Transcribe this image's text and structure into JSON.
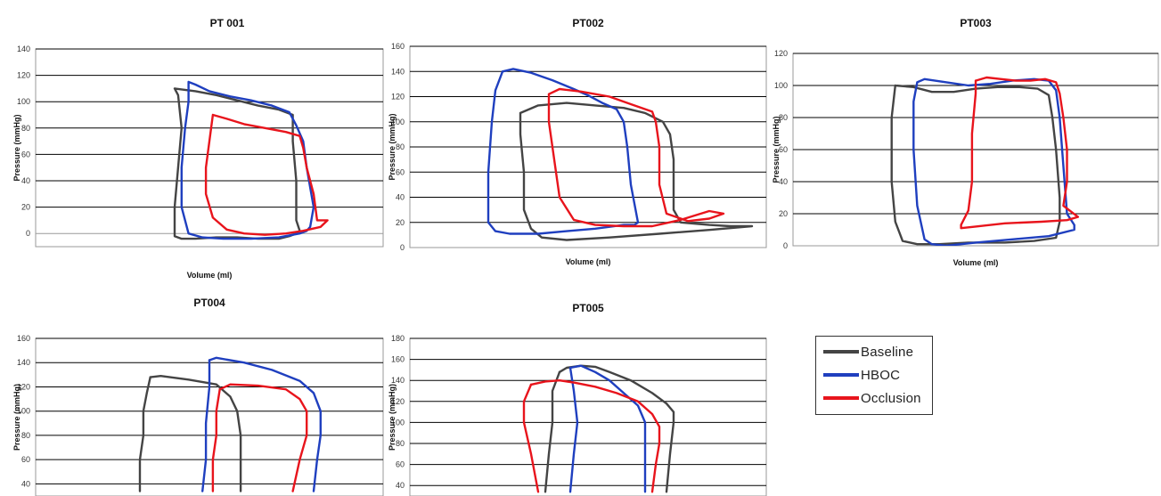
{
  "legend": {
    "items": [
      {
        "label": "Baseline",
        "color": "#444444"
      },
      {
        "label": "HBOC",
        "color": "#1f3fbf"
      },
      {
        "label": "Occlusion",
        "color": "#e8141c"
      }
    ]
  },
  "chart_data": [
    {
      "type": "line",
      "title": "PT 001",
      "xlabel": "Volume (ml)",
      "ylabel": "Pressure (mmHg)",
      "ylim": [
        -10,
        140
      ],
      "yticks": [
        0,
        20,
        40,
        60,
        80,
        100,
        120,
        140
      ],
      "xlim": [
        0,
        100
      ],
      "grid": "horizontal-major",
      "series": [
        {
          "name": "Baseline",
          "x": [
            40,
            46,
            52,
            58,
            64,
            70,
            74,
            74,
            75,
            75,
            76,
            75,
            73,
            70,
            64,
            58,
            52,
            46,
            42,
            40,
            40,
            41,
            42,
            41,
            40
          ],
          "y": [
            110,
            108,
            105,
            101,
            97,
            94,
            90,
            70,
            40,
            10,
            2,
            0,
            -2,
            -4,
            -4,
            -3,
            -3,
            -4,
            -4,
            -2,
            20,
            50,
            80,
            105,
            110
          ]
        },
        {
          "name": "HBOC",
          "x": [
            44,
            46,
            50,
            56,
            62,
            68,
            73,
            75,
            77,
            78,
            80,
            79,
            78,
            76,
            70,
            62,
            54,
            48,
            44,
            42,
            42,
            43,
            44,
            44
          ],
          "y": [
            115,
            113,
            108,
            104,
            101,
            97,
            92,
            82,
            70,
            50,
            20,
            5,
            2,
            0,
            -3,
            -4,
            -4,
            -3,
            0,
            20,
            50,
            80,
            100,
            115
          ]
        },
        {
          "name": "Occlusion",
          "x": [
            51,
            55,
            60,
            66,
            72,
            76,
            77,
            78,
            80,
            81,
            84,
            82,
            77,
            72,
            66,
            60,
            55,
            51,
            49,
            49,
            50,
            51
          ],
          "y": [
            90,
            87,
            83,
            80,
            77,
            74,
            65,
            50,
            30,
            10,
            10,
            5,
            2,
            0,
            -1,
            0,
            3,
            12,
            30,
            50,
            70,
            90
          ]
        }
      ]
    },
    {
      "type": "line",
      "title": "PT002",
      "xlabel": "Volume (ml)",
      "ylabel": "Pressure (mmHg)",
      "ylim": [
        0,
        160
      ],
      "yticks": [
        0,
        20,
        40,
        60,
        80,
        100,
        120,
        140,
        160
      ],
      "xlim": [
        0,
        100
      ],
      "grid": "horizontal-major",
      "series": [
        {
          "name": "Baseline",
          "x": [
            31,
            36,
            44,
            52,
            60,
            66,
            71,
            73,
            74,
            74,
            76,
            84,
            90,
            96,
            84,
            70,
            56,
            44,
            37,
            34,
            32,
            32,
            31,
            31
          ],
          "y": [
            107,
            113,
            115,
            113,
            111,
            107,
            100,
            90,
            70,
            30,
            20,
            18,
            17,
            17,
            14,
            11,
            8,
            6,
            8,
            15,
            30,
            60,
            90,
            107
          ]
        },
        {
          "name": "HBOC",
          "x": [
            26,
            29,
            34,
            40,
            46,
            50,
            54,
            58,
            60,
            61,
            62,
            64,
            63,
            60,
            52,
            44,
            36,
            28,
            24,
            22,
            22,
            23,
            24,
            26
          ],
          "y": [
            140,
            142,
            139,
            133,
            126,
            121,
            115,
            110,
            100,
            80,
            50,
            20,
            18,
            18,
            15,
            13,
            11,
            11,
            13,
            20,
            60,
            100,
            125,
            140
          ]
        },
        {
          "name": "Occlusion",
          "x": [
            39,
            42,
            48,
            56,
            62,
            68,
            69,
            70,
            70,
            72,
            78,
            84,
            88,
            84,
            76,
            68,
            60,
            52,
            46,
            42,
            41,
            40,
            39,
            39
          ],
          "y": [
            122,
            126,
            124,
            120,
            114,
            108,
            100,
            80,
            50,
            27,
            21,
            23,
            27,
            29,
            22,
            17,
            17,
            18,
            22,
            40,
            60,
            80,
            100,
            122
          ]
        }
      ]
    },
    {
      "type": "line",
      "title": "PT003",
      "xlabel": "Volume (ml)",
      "ylabel": "Pressure (mmHg)",
      "ylim": [
        0,
        120
      ],
      "yticks": [
        0,
        20,
        40,
        60,
        80,
        100,
        120
      ],
      "xlim": [
        0,
        100
      ],
      "grid": "horizontal-major",
      "series": [
        {
          "name": "Baseline",
          "x": [
            28,
            33,
            38,
            44,
            50,
            56,
            62,
            67,
            70,
            71,
            72,
            73,
            73,
            72,
            66,
            58,
            48,
            40,
            34,
            30,
            28,
            27,
            27,
            28
          ],
          "y": [
            100,
            99,
            96,
            96,
            98,
            99,
            99,
            98,
            94,
            80,
            60,
            30,
            15,
            5,
            3,
            2,
            2,
            1,
            1,
            3,
            15,
            40,
            80,
            100
          ]
        },
        {
          "name": "HBOC",
          "x": [
            34,
            36,
            42,
            48,
            54,
            60,
            66,
            70,
            72,
            73,
            74,
            75,
            77,
            77,
            70,
            60,
            50,
            42,
            38,
            36,
            34,
            33,
            33,
            34
          ],
          "y": [
            102,
            104,
            102,
            100,
            101,
            103,
            104,
            103,
            97,
            80,
            50,
            20,
            13,
            10,
            6,
            4,
            2,
            0,
            1,
            4,
            25,
            60,
            90,
            102
          ]
        },
        {
          "name": "Occlusion",
          "x": [
            50,
            53,
            57,
            61,
            65,
            69,
            72,
            73,
            74,
            75,
            75,
            74,
            78,
            75,
            68,
            58,
            50,
            46,
            46,
            48,
            49,
            49,
            50,
            50
          ],
          "y": [
            103,
            105,
            104,
            103,
            103,
            104,
            102,
            95,
            80,
            60,
            40,
            25,
            18,
            16,
            15,
            14,
            12,
            11,
            13,
            22,
            40,
            70,
            95,
            103
          ]
        }
      ]
    },
    {
      "type": "line",
      "title": "PT004",
      "xlabel": "",
      "ylabel": "Pressure (mmHg)",
      "ylim": [
        30,
        160
      ],
      "yticks": [
        40,
        60,
        80,
        100,
        120,
        140,
        160
      ],
      "xlim": [
        0,
        100
      ],
      "grid": "horizontal-major",
      "series": [
        {
          "name": "Baseline",
          "x": [
            33,
            36,
            44,
            52,
            56,
            58,
            59,
            59,
            59
          ],
          "y": [
            128,
            129,
            126,
            122,
            112,
            100,
            80,
            60,
            34
          ]
        },
        {
          "name": "Baseline",
          "x": [
            33,
            32,
            31,
            31,
            30,
            30
          ],
          "y": [
            128,
            115,
            100,
            80,
            60,
            34
          ]
        },
        {
          "name": "HBOC",
          "x": [
            50,
            52,
            60,
            68,
            76,
            80,
            82,
            82,
            81,
            80
          ],
          "y": [
            142,
            144,
            140,
            134,
            125,
            115,
            100,
            80,
            60,
            34
          ]
        },
        {
          "name": "HBOC",
          "x": [
            50,
            50,
            49,
            49,
            48
          ],
          "y": [
            142,
            120,
            90,
            60,
            34
          ]
        },
        {
          "name": "Occlusion",
          "x": [
            53,
            56,
            64,
            72,
            76,
            78,
            78,
            76,
            74
          ],
          "y": [
            118,
            122,
            121,
            118,
            110,
            100,
            80,
            60,
            34
          ]
        },
        {
          "name": "Occlusion",
          "x": [
            53,
            52,
            52,
            51,
            51
          ],
          "y": [
            118,
            100,
            80,
            60,
            34
          ]
        }
      ]
    },
    {
      "type": "line",
      "title": "PT005",
      "xlabel": "",
      "ylabel": "Pressure (mmHg)",
      "ylim": [
        30,
        180
      ],
      "yticks": [
        40,
        60,
        80,
        100,
        120,
        140,
        160,
        180
      ],
      "xlim": [
        0,
        100
      ],
      "grid": "horizontal-major",
      "series": [
        {
          "name": "Baseline",
          "x": [
            42,
            44,
            48,
            52,
            56,
            62,
            68,
            72,
            74,
            74,
            73,
            72
          ],
          "y": [
            148,
            152,
            154,
            153,
            148,
            140,
            128,
            118,
            110,
            100,
            70,
            34
          ]
        },
        {
          "name": "Baseline",
          "x": [
            42,
            40,
            40,
            39,
            38
          ],
          "y": [
            148,
            130,
            100,
            70,
            34
          ]
        },
        {
          "name": "HBOC",
          "x": [
            45,
            48,
            52,
            56,
            60,
            64,
            66,
            66,
            66
          ],
          "y": [
            152,
            154,
            148,
            140,
            128,
            116,
            100,
            70,
            34
          ]
        },
        {
          "name": "HBOC",
          "x": [
            45,
            46,
            47,
            46,
            45
          ],
          "y": [
            152,
            130,
            100,
            70,
            34
          ]
        },
        {
          "name": "Occlusion",
          "x": [
            34,
            38,
            42,
            46,
            52,
            58,
            64,
            68,
            70,
            70,
            69,
            68
          ],
          "y": [
            136,
            139,
            140,
            138,
            134,
            128,
            120,
            108,
            96,
            80,
            60,
            34
          ]
        },
        {
          "name": "Occlusion",
          "x": [
            34,
            32,
            32,
            34,
            36
          ],
          "y": [
            136,
            120,
            100,
            70,
            34
          ]
        }
      ]
    }
  ]
}
